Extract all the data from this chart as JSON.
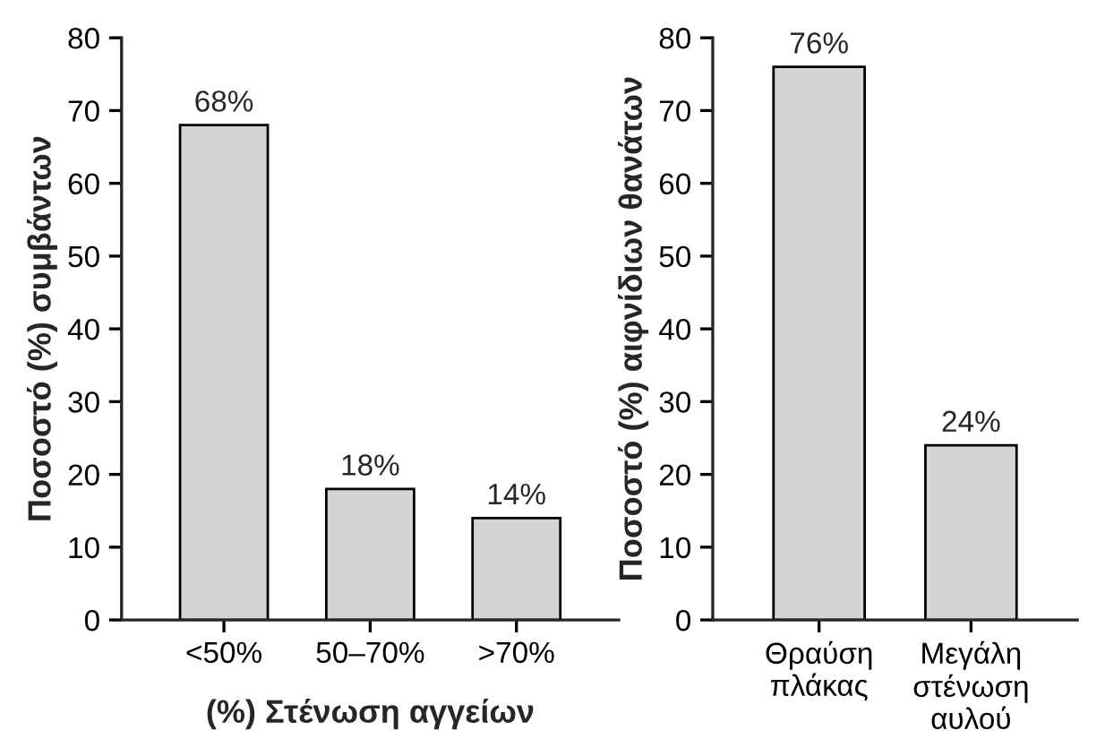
{
  "chart_data": [
    {
      "type": "bar",
      "categories": [
        "<50%",
        "50–70%",
        ">70%"
      ],
      "values": [
        68,
        18,
        14
      ],
      "color": "#d4d4d4",
      "xlabel": "(%) Στένωση αγγείων",
      "ylabel": "Ποσοστό (%) συμβάντων",
      "ylim": [
        0,
        80
      ],
      "yticks": [
        0,
        10,
        20,
        30,
        40,
        50,
        60,
        70,
        80
      ],
      "value_labels": [
        "68%",
        "18%",
        "14%"
      ],
      "grid": false,
      "legend": false
    },
    {
      "type": "bar",
      "categories": [
        "Θραύση\nπλάκας",
        "Μεγάλη\nστένωση\nαυλού"
      ],
      "values": [
        76,
        24
      ],
      "color": "#d4d4d4",
      "ylabel": "Ποσοστό (%) αιφνίδιων θανάτων",
      "ylim": [
        0,
        80
      ],
      "yticks": [
        0,
        10,
        20,
        30,
        40,
        50,
        60,
        70,
        80
      ],
      "value_labels": [
        "76%",
        "24%"
      ],
      "grid": false,
      "legend": false
    }
  ]
}
